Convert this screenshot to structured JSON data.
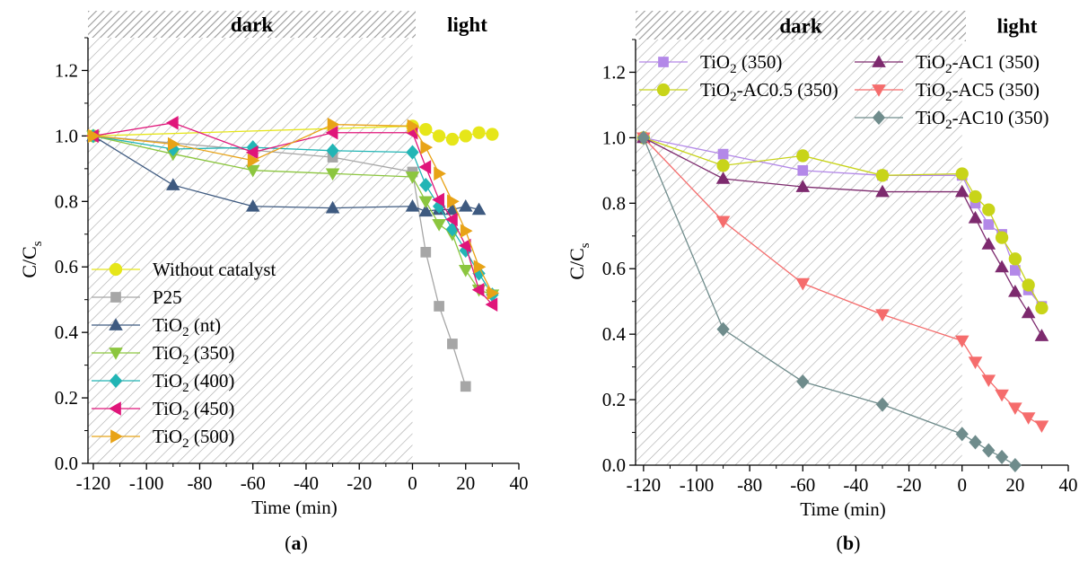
{
  "chart_data": [
    {
      "type": "line",
      "panel_label": "(a)",
      "xlabel": "Time (min)",
      "ylabel": "C/Cs",
      "xlim": [
        -122,
        40
      ],
      "ylim": [
        0,
        1.3
      ],
      "xticks": [
        -120,
        -100,
        -80,
        -60,
        -40,
        -20,
        0,
        20,
        40
      ],
      "yticks": [
        0.0,
        0.2,
        0.4,
        0.6,
        0.8,
        1.0,
        1.2
      ],
      "band_dark_label": "dark",
      "band_light_label": "light",
      "legend_placement": "bottom-left",
      "series": [
        {
          "name": "Without catalyst",
          "color": "#e6e619",
          "marker": "circle",
          "x": [
            -120,
            0,
            5,
            10,
            15,
            20,
            25,
            30
          ],
          "y": [
            1.0,
            1.03,
            1.02,
            1.0,
            0.99,
            1.0,
            1.01,
            1.005
          ]
        },
        {
          "name": "P25",
          "color": "#a6a6a6",
          "marker": "square",
          "x": [
            -120,
            -30,
            0,
            5,
            10,
            15,
            20
          ],
          "y": [
            1.0,
            0.935,
            0.89,
            0.645,
            0.48,
            0.365,
            0.235
          ]
        },
        {
          "name": "TiO2 (nt)",
          "color": "#3e5a80",
          "marker": "triangle-up",
          "x": [
            -120,
            -90,
            -60,
            -30,
            0,
            5,
            10,
            15,
            20,
            25
          ],
          "y": [
            1.0,
            0.85,
            0.785,
            0.78,
            0.785,
            0.77,
            0.775,
            0.775,
            0.785,
            0.775
          ]
        },
        {
          "name": "TiO2 (350)",
          "color": "#8cc63f",
          "marker": "triangle-down",
          "x": [
            -120,
            -90,
            -60,
            -30,
            0,
            5,
            10,
            15,
            20,
            25,
            30
          ],
          "y": [
            1.0,
            0.945,
            0.895,
            0.885,
            0.875,
            0.8,
            0.73,
            0.7,
            0.59,
            0.53,
            0.515
          ]
        },
        {
          "name": "TiO2 (400)",
          "color": "#22b5b5",
          "marker": "diamond",
          "x": [
            -120,
            -90,
            -60,
            -30,
            0,
            5,
            10,
            15,
            20,
            25,
            30
          ],
          "y": [
            1.0,
            0.96,
            0.965,
            0.955,
            0.95,
            0.85,
            0.785,
            0.715,
            0.65,
            0.58,
            0.515
          ]
        },
        {
          "name": "TiO2 (450)",
          "color": "#e0157a",
          "marker": "triangle-left",
          "x": [
            -120,
            -90,
            -60,
            -30,
            0,
            5,
            10,
            15,
            20,
            25,
            30
          ],
          "y": [
            1.0,
            1.04,
            0.95,
            1.01,
            1.01,
            0.905,
            0.805,
            0.745,
            0.665,
            0.53,
            0.485
          ]
        },
        {
          "name": "TiO2 (500)",
          "color": "#e8a317",
          "marker": "triangle-right",
          "x": [
            -120,
            -90,
            -60,
            -30,
            0,
            5,
            10,
            15,
            20,
            25,
            30
          ],
          "y": [
            1.0,
            0.975,
            0.925,
            1.035,
            1.03,
            0.965,
            0.885,
            0.8,
            0.71,
            0.6,
            0.52
          ]
        }
      ]
    },
    {
      "type": "line",
      "panel_label": "(b)",
      "xlabel": "Time (min)",
      "ylabel": "C/Cs",
      "xlim": [
        -123,
        40
      ],
      "ylim": [
        0,
        1.3
      ],
      "xticks": [
        -120,
        -100,
        -80,
        -60,
        -40,
        -20,
        0,
        20,
        40
      ],
      "yticks": [
        0.0,
        0.2,
        0.4,
        0.6,
        0.8,
        1.0,
        1.2
      ],
      "band_dark_label": "dark",
      "band_light_label": "light",
      "legend_placement": "top",
      "series": [
        {
          "name": "TiO2 (350)",
          "color": "#b388e8",
          "marker": "square",
          "x": [
            -120,
            -90,
            -60,
            -30,
            0,
            5,
            10,
            15,
            20,
            25,
            30
          ],
          "y": [
            1.0,
            0.95,
            0.9,
            0.885,
            0.885,
            0.8,
            0.735,
            0.705,
            0.595,
            0.535,
            0.485
          ]
        },
        {
          "name": "TiO2-AC0.5 (350)",
          "color": "#c8d419",
          "marker": "circle",
          "x": [
            -120,
            -90,
            -60,
            -30,
            0,
            5,
            10,
            15,
            20,
            25,
            30
          ],
          "y": [
            1.0,
            0.915,
            0.945,
            0.885,
            0.89,
            0.82,
            0.78,
            0.695,
            0.63,
            0.55,
            0.48
          ]
        },
        {
          "name": "TiO2-AC1 (350)",
          "color": "#7d2a6e",
          "marker": "triangle-up",
          "x": [
            -120,
            -90,
            -60,
            -30,
            0,
            5,
            10,
            15,
            20,
            25,
            30
          ],
          "y": [
            1.0,
            0.875,
            0.85,
            0.835,
            0.835,
            0.755,
            0.675,
            0.605,
            0.53,
            0.465,
            0.395
          ]
        },
        {
          "name": "TiO2-AC5 (350)",
          "color": "#f56c6c",
          "marker": "triangle-down",
          "x": [
            -120,
            -90,
            -60,
            -30,
            0,
            5,
            10,
            15,
            20,
            25,
            30
          ],
          "y": [
            1.0,
            0.745,
            0.555,
            0.46,
            0.38,
            0.315,
            0.26,
            0.215,
            0.175,
            0.145,
            0.12
          ]
        },
        {
          "name": "TiO2-AC10 (350)",
          "color": "#6f8c8c",
          "marker": "diamond",
          "x": [
            -120,
            -90,
            -60,
            -30,
            0,
            5,
            10,
            15,
            20
          ],
          "y": [
            1.0,
            0.415,
            0.255,
            0.185,
            0.095,
            0.07,
            0.045,
            0.025,
            0.0
          ]
        }
      ]
    }
  ]
}
